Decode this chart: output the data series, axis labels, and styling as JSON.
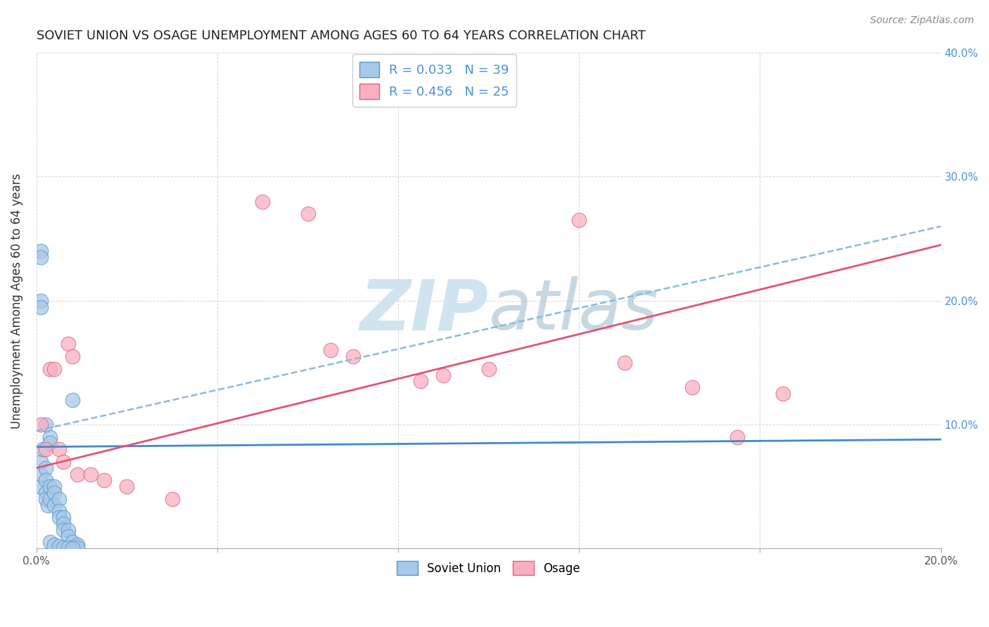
{
  "title": "SOVIET UNION VS OSAGE UNEMPLOYMENT AMONG AGES 60 TO 64 YEARS CORRELATION CHART",
  "source": "Source: ZipAtlas.com",
  "ylabel": "Unemployment Among Ages 60 to 64 years",
  "xlim": [
    0,
    0.2
  ],
  "ylim": [
    0,
    0.4
  ],
  "xtick_positions": [
    0.0,
    0.04,
    0.08,
    0.12,
    0.16,
    0.2
  ],
  "xtick_labels": [
    "0.0%",
    "",
    "",
    "",
    "",
    "20.0%"
  ],
  "ytick_positions": [
    0.0,
    0.1,
    0.2,
    0.3,
    0.4
  ],
  "ytick_labels_right": [
    "",
    "10.0%",
    "20.0%",
    "30.0%",
    "40.0%"
  ],
  "legend_r1": "R = 0.033",
  "legend_n1": "N = 39",
  "legend_r2": "R = 0.456",
  "legend_n2": "N = 25",
  "color_blue_face": "#a8c8e8",
  "color_blue_edge": "#5599cc",
  "color_pink_face": "#f8b0c0",
  "color_pink_edge": "#e06080",
  "line_color_blue": "#4488cc",
  "line_color_pink": "#e05575",
  "line_color_dash": "#88bbdd",
  "watermark_color": "#d0e4f0",
  "background": "#ffffff",
  "grid_color": "#cccccc",
  "title_color": "#222222",
  "source_color": "#888888",
  "ylabel_color": "#333333",
  "right_tick_color": "#4a90d9",
  "soviet_x": [
    0.0005,
    0.001,
    0.001,
    0.001,
    0.001,
    0.0015,
    0.002,
    0.002,
    0.002,
    0.002,
    0.0025,
    0.003,
    0.003,
    0.003,
    0.003,
    0.004,
    0.004,
    0.004,
    0.005,
    0.005,
    0.005,
    0.006,
    0.006,
    0.006,
    0.007,
    0.007,
    0.008,
    0.008,
    0.009,
    0.009,
    0.001,
    0.001,
    0.002,
    0.003,
    0.004,
    0.005,
    0.006,
    0.007,
    0.008
  ],
  "soviet_y": [
    0.05,
    0.24,
    0.235,
    0.07,
    0.06,
    0.08,
    0.065,
    0.055,
    0.045,
    0.04,
    0.035,
    0.09,
    0.085,
    0.05,
    0.04,
    0.05,
    0.045,
    0.035,
    0.04,
    0.03,
    0.025,
    0.025,
    0.02,
    0.015,
    0.015,
    0.01,
    0.12,
    0.005,
    0.003,
    0.001,
    0.2,
    0.195,
    0.1,
    0.005,
    0.003,
    0.002,
    0.001,
    0.001,
    0.0
  ],
  "osage_x": [
    0.001,
    0.002,
    0.003,
    0.004,
    0.005,
    0.006,
    0.007,
    0.008,
    0.009,
    0.012,
    0.015,
    0.02,
    0.03,
    0.05,
    0.06,
    0.065,
    0.07,
    0.085,
    0.09,
    0.1,
    0.12,
    0.13,
    0.145,
    0.155,
    0.165
  ],
  "osage_y": [
    0.1,
    0.08,
    0.145,
    0.145,
    0.08,
    0.07,
    0.165,
    0.155,
    0.06,
    0.06,
    0.055,
    0.05,
    0.04,
    0.28,
    0.27,
    0.16,
    0.155,
    0.135,
    0.14,
    0.145,
    0.265,
    0.15,
    0.13,
    0.09,
    0.125
  ],
  "su_line_x": [
    0.0,
    0.2
  ],
  "su_line_y": [
    0.082,
    0.088
  ],
  "osage_line_x": [
    0.0,
    0.2
  ],
  "osage_line_y": [
    0.065,
    0.245
  ],
  "dash_line_x": [
    0.0,
    0.2
  ],
  "dash_line_y": [
    0.095,
    0.26
  ]
}
